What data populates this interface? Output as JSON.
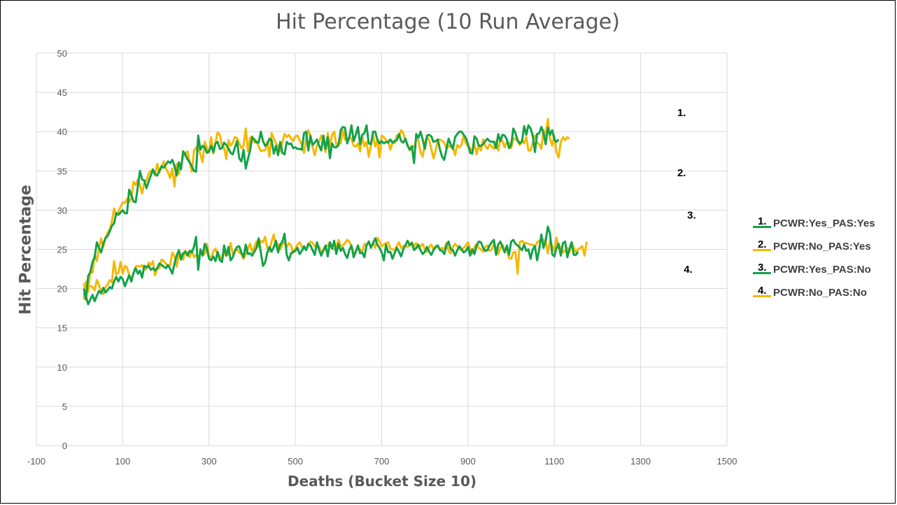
{
  "chart_data": {
    "type": "line",
    "title": "Hit Percentage (10 Run Average)",
    "xlabel": "Deaths (Bucket Size 10)",
    "ylabel": "Hit Percentage",
    "xlim": [
      -100,
      1500
    ],
    "ylim": [
      0,
      50
    ],
    "x_ticks": [
      -100,
      100,
      300,
      500,
      700,
      900,
      1100,
      1300,
      1500
    ],
    "y_ticks": [
      0,
      5,
      10,
      15,
      20,
      25,
      30,
      35,
      40,
      45,
      50
    ],
    "grid": true,
    "legend_position": "right",
    "series": [
      {
        "name": "PCWR:Yes_PAS:Yes",
        "number": "1.",
        "color": "#13a24a",
        "x_start": 10,
        "x_step": 5,
        "values": [
          20.0,
          18.6,
          21.6,
          22.1,
          23.4,
          24.0,
          25.9,
          25.2,
          24.6,
          25.7,
          26.4,
          26.7,
          27.3,
          28.0,
          28.3,
          29.6,
          29.4,
          29.7,
          30.0,
          29.6,
          29.6,
          32.6,
          31.9,
          31.1,
          31.0,
          33.0,
          35.0,
          33.9,
          33.8,
          32.8,
          33.6,
          34.4,
          35.2,
          34.6,
          34.4,
          35.0,
          35.6,
          35.4,
          35.8,
          36.2,
          36.0,
          36.4,
          35.6,
          34.4,
          36.1,
          35.2,
          37.5,
          37.1,
          36.5,
          36.1,
          35.6,
          35.0,
          34.9,
          39.5,
          37.7,
          38.2,
          38.0,
          37.3,
          37.5,
          38.2,
          37.4,
          38.5,
          38.7,
          37.8,
          37.9,
          38.6,
          38.3,
          37.9,
          37.3,
          37.1,
          38.0,
          38.8,
          36.6,
          36.2,
          37.7,
          35.3,
          36.5,
          37.6,
          39.3,
          39.0,
          38.6,
          38.6,
          40.0,
          38.8,
          38.2,
          38.4,
          39.1,
          38.9,
          37.2,
          38.2,
          37.0,
          38.7,
          37.3,
          37.1,
          38.7,
          38.4,
          38.5,
          37.9,
          38.0,
          37.8,
          37.8,
          37.7,
          39.8,
          40.0,
          37.6,
          39.5,
          38.3,
          38.6,
          39.0,
          38.2,
          37.6,
          39.5,
          37.8,
          39.3,
          36.6,
          38.5,
          38.0,
          38.0,
          38.3,
          40.2,
          40.6,
          40.5,
          38.5,
          39.3,
          40.8,
          38.8,
          39.6,
          40.6,
          38.4,
          39.6,
          39.8,
          40.8,
          38.5,
          38.4,
          40.0,
          40.0,
          39.0,
          38.5,
          38.8,
          38.5,
          38.7,
          38.6,
          39.0,
          38.6,
          38.8,
          38.9,
          39.7,
          38.8,
          38.6,
          39.1,
          38.2,
          37.7,
          38.1,
          36.0,
          39.7,
          39.2,
          40.0,
          39.0,
          37.8,
          39.5,
          39.6,
          39.4,
          38.7,
          38.8,
          39.0,
          37.7,
          36.8,
          36.4,
          37.7,
          39.1,
          38.4,
          37.8,
          39.3,
          39.7,
          40.0,
          40.0,
          39.6,
          39.2,
          38.4,
          37.3,
          37.2,
          39.4,
          39.1,
          38.2,
          38.2,
          38.4,
          38.8,
          39.1,
          38.8,
          38.7,
          38.7,
          37.9,
          39.7,
          38.8,
          39.6,
          39.5,
          39.0,
          37.9,
          38.3,
          40.4,
          39.8,
          38.9,
          38.5,
          38.7,
          40.7,
          39.6,
          40.8,
          40.4,
          39.5,
          37.4,
          39.7,
          39.8,
          40.6,
          39.8,
          38.4,
          40.5,
          39.6,
          40.2,
          39.0,
          38.7,
          39.0
        ]
      },
      {
        "name": "PCWR:No_PAS:Yes",
        "number": "2.",
        "color": "#f5b800",
        "x_start": 10,
        "x_step": 5,
        "values": [
          18.6,
          20.9,
          19.6,
          22.2,
          22.0,
          24.3,
          23.5,
          25.0,
          26.4,
          25.3,
          26.5,
          27.1,
          27.6,
          28.6,
          30.2,
          29.4,
          29.8,
          30.4,
          31.0,
          30.9,
          31.4,
          31.0,
          31.5,
          33.6,
          33.2,
          33.9,
          33.2,
          32.1,
          33.5,
          33.7,
          34.7,
          35.0,
          34.9,
          34.4,
          35.9,
          34.8,
          35.5,
          36.2,
          35.3,
          34.8,
          34.1,
          35.3,
          33.0,
          35.9,
          34.6,
          35.7,
          36.8,
          37.2,
          37.5,
          36.2,
          34.9,
          37.5,
          38.0,
          38.0,
          37.1,
          36.1,
          38.7,
          37.9,
          37.3,
          39.3,
          37.2,
          38.6,
          39.9,
          39.6,
          38.1,
          38.0,
          36.5,
          38.9,
          38.2,
          38.6,
          39.3,
          39.2,
          38.5,
          37.9,
          38.2,
          40.4,
          37.5,
          39.2,
          39.4,
          38.6,
          38.8,
          38.1,
          37.5,
          37.6,
          37.6,
          38.7,
          36.8,
          39.8,
          39.1,
          38.5,
          38.2,
          37.5,
          38.6,
          39.7,
          39.3,
          39.6,
          39.1,
          38.8,
          39.4,
          39.5,
          38.9,
          38.3,
          37.3,
          39.1,
          40.2,
          39.4,
          38.0,
          37.0,
          38.2,
          38.7,
          39.5,
          38.9,
          37.4,
          39.8,
          38.1,
          39.6,
          40.0,
          38.3,
          38.6,
          38.5,
          40.2,
          39.0,
          38.9,
          39.3,
          39.1,
          38.2,
          38.1,
          38.5,
          37.5,
          39.4,
          38.1,
          38.7,
          36.8,
          38.2,
          39.6,
          38.1,
          38.9,
          36.7,
          39.5,
          39.3,
          38.9,
          38.8,
          37.7,
          38.6,
          38.5,
          39.5,
          39.2,
          40.2,
          39.8,
          38.9,
          38.4,
          37.6,
          38.2,
          38.0,
          39.0,
          38.9,
          37.4,
          36.8,
          38.6,
          39.4,
          38.9,
          37.8,
          36.6,
          37.6,
          38.9,
          39.0,
          38.8,
          38.6,
          37.8,
          38.2,
          38.0,
          38.1,
          37.0,
          38.3,
          38.0,
          38.3,
          39.6,
          38.5,
          38.1,
          37.9,
          37.3,
          38.5,
          37.1,
          38.3,
          37.6,
          39.0,
          38.2,
          37.8,
          38.4,
          38.1,
          37.8,
          38.8,
          37.6,
          39.1,
          38.8,
          38.0,
          38.7,
          38.6,
          37.9,
          39.2,
          39.0,
          38.8,
          38.3,
          38.9,
          38.5,
          39.3,
          37.6,
          37.6,
          38.6,
          39.5,
          38.6,
          38.4,
          37.8,
          40.2,
          39.6,
          41.6,
          39.1,
          38.2,
          39.5,
          37.4,
          36.7,
          38.7,
          39.3,
          38.9,
          39.3,
          39.1
        ]
      },
      {
        "name": "PCWR:Yes_PAS:No",
        "number": "3.",
        "color": "#13a24a",
        "x_start": 10,
        "x_step": 5,
        "values": [
          19.4,
          19.0,
          18.0,
          18.6,
          19.2,
          18.4,
          19.1,
          19.7,
          19.4,
          20.1,
          19.5,
          19.8,
          20.2,
          20.0,
          20.9,
          21.5,
          20.9,
          21.5,
          21.2,
          20.3,
          21.0,
          21.7,
          20.9,
          22.0,
          22.6,
          21.9,
          22.3,
          21.4,
          22.9,
          22.7,
          22.9,
          22.4,
          22.6,
          22.3,
          22.6,
          23.2,
          23.0,
          22.8,
          22.6,
          23.0,
          22.5,
          21.9,
          23.2,
          24.2,
          24.9,
          23.7,
          24.5,
          24.7,
          24.2,
          24.8,
          24.6,
          25.3,
          26.6,
          22.4,
          25.0,
          24.2,
          25.7,
          25.1,
          23.8,
          23.6,
          24.1,
          23.5,
          24.7,
          23.6,
          23.4,
          25.5,
          24.2,
          25.3,
          23.6,
          24.0,
          24.8,
          25.3,
          25.4,
          24.6,
          24.0,
          25.6,
          24.4,
          24.5,
          24.2,
          24.7,
          25.2,
          26.4,
          24.6,
          22.9,
          23.3,
          24.6,
          25.3,
          24.7,
          25.3,
          26.1,
          24.6,
          25.6,
          26.0,
          27.0,
          24.3,
          23.6,
          24.5,
          24.7,
          24.8,
          25.2,
          24.4,
          24.8,
          25.4,
          24.9,
          25.7,
          25.5,
          24.9,
          24.3,
          25.9,
          24.9,
          24.2,
          24.9,
          25.5,
          24.1,
          25.9,
          25.1,
          26.1,
          24.4,
          25.7,
          24.8,
          25.2,
          24.4,
          23.9,
          24.9,
          25.5,
          24.0,
          24.7,
          25.5,
          24.5,
          24.6,
          24.0,
          25.5,
          26.0,
          25.2,
          25.8,
          26.4,
          25.6,
          25.2,
          24.6,
          23.6,
          25.6,
          24.6,
          24.7,
          23.8,
          24.5,
          25.2,
          24.7,
          24.1,
          25.0,
          25.5,
          26.1,
          25.5,
          25.8,
          24.9,
          25.2,
          25.6,
          24.9,
          24.4,
          24.7,
          25.3,
          24.7,
          24.3,
          24.9,
          25.3,
          25.5,
          24.9,
          24.8,
          24.4,
          25.5,
          26.0,
          25.0,
          24.9,
          24.2,
          24.9,
          25.4,
          25.0,
          24.6,
          24.8,
          25.3,
          24.2,
          25.0,
          24.4,
          25.5,
          26.0,
          25.9,
          25.2,
          24.8,
          24.9,
          25.5,
          25.9,
          26.2,
          24.3,
          25.6,
          26.0,
          25.3,
          24.6,
          25.5,
          24.3,
          26.0,
          26.2,
          25.7,
          25.5,
          25.2,
          24.9,
          25.6,
          24.8,
          25.0,
          23.8,
          25.0,
          25.4,
          23.6,
          25.0,
          26.9,
          25.2,
          26.1,
          27.9,
          27.0,
          24.4,
          24.1,
          25.2,
          25.7,
          24.2,
          25.8,
          26.0,
          24.0,
          25.0,
          25.9,
          24.3,
          24.3,
          24.7
        ]
      },
      {
        "name": "PCWR:No_PAS:No",
        "number": "4.",
        "color": "#f5b800",
        "x_start": 10,
        "x_step": 5,
        "values": [
          20.7,
          19.1,
          20.2,
          20.3,
          20.2,
          19.8,
          21.1,
          20.5,
          19.5,
          19.3,
          20.2,
          20.5,
          21.1,
          20.8,
          23.5,
          21.8,
          22.0,
          23.4,
          21.9,
          22.9,
          22.7,
          21.7,
          21.2,
          22.0,
          22.8,
          22.9,
          22.8,
          23.0,
          22.4,
          22.5,
          23.3,
          23.0,
          23.5,
          21.7,
          22.5,
          22.6,
          23.7,
          23.5,
          23.2,
          22.8,
          23.0,
          24.6,
          24.1,
          22.8,
          24.3,
          24.4,
          23.7,
          24.8,
          24.6,
          24.0,
          24.9,
          24.0,
          24.3,
          23.7,
          24.5,
          24.3,
          24.4,
          25.7,
          24.0,
          24.0,
          24.7,
          25.1,
          24.2,
          24.2,
          23.5,
          24.7,
          24.2,
          24.3,
          25.8,
          24.4,
          24.8,
          25.0,
          24.6,
          24.4,
          23.8,
          24.4,
          25.1,
          25.7,
          24.7,
          25.3,
          26.0,
          25.3,
          26.1,
          25.9,
          26.6,
          25.2,
          24.7,
          26.0,
          26.9,
          25.3,
          25.7,
          25.0,
          25.6,
          25.9,
          25.3,
          25.8,
          25.5,
          24.5,
          25.1,
          25.6,
          25.9,
          25.3,
          25.2,
          25.0,
          25.5,
          26.0,
          25.8,
          25.4,
          25.3,
          25.4,
          24.6,
          24.8,
          25.2,
          25.5,
          25.9,
          25.1,
          25.0,
          25.3,
          26.2,
          25.4,
          25.5,
          25.8,
          26.2,
          26.0,
          25.4,
          24.6,
          24.7,
          25.2,
          25.0,
          24.6,
          25.7,
          25.5,
          26.0,
          25.3,
          25.8,
          25.2,
          26.5,
          26.0,
          25.4,
          25.6,
          25.8,
          25.9,
          25.1,
          25.0,
          24.9,
          25.4,
          25.9,
          25.2,
          25.4,
          25.5,
          25.3,
          25.6,
          25.9,
          25.4,
          25.8,
          25.2,
          25.4,
          25.7,
          25.0,
          24.7,
          25.3,
          25.6,
          25.0,
          25.4,
          25.3,
          25.0,
          25.2,
          25.0,
          25.8,
          24.8,
          24.5,
          25.3,
          25.7,
          25.4,
          25.0,
          24.9,
          25.2,
          25.5,
          25.9,
          25.0,
          24.5,
          25.3,
          25.7,
          25.2,
          25.0,
          24.7,
          25.3,
          25.5,
          24.8,
          25.0,
          25.7,
          25.2,
          24.4,
          25.2,
          25.6,
          24.8,
          25.0,
          23.9,
          23.8,
          24.6,
          24.7,
          21.9,
          25.9,
          26.1,
          25.8,
          25.8,
          25.7,
          25.6,
          25.6,
          25.3,
          25.9,
          26.1,
          26.2,
          26.2,
          26.0,
          24.5,
          26.1,
          25.4,
          24.8,
          26.5,
          25.1,
          25.3,
          24.6,
          24.8,
          25.2,
          24.6,
          25.9,
          25.2,
          24.6,
          25.0,
          25.2,
          25.4,
          24.2,
          26.0
        ]
      }
    ],
    "annotations": [
      {
        "label": "1.",
        "x": 1395,
        "y": 42.0
      },
      {
        "label": "2.",
        "x": 1395,
        "y": 34.3
      },
      {
        "label": "3.",
        "x": 1418,
        "y": 28.9
      },
      {
        "label": "4.",
        "x": 1410,
        "y": 22.0
      }
    ]
  }
}
